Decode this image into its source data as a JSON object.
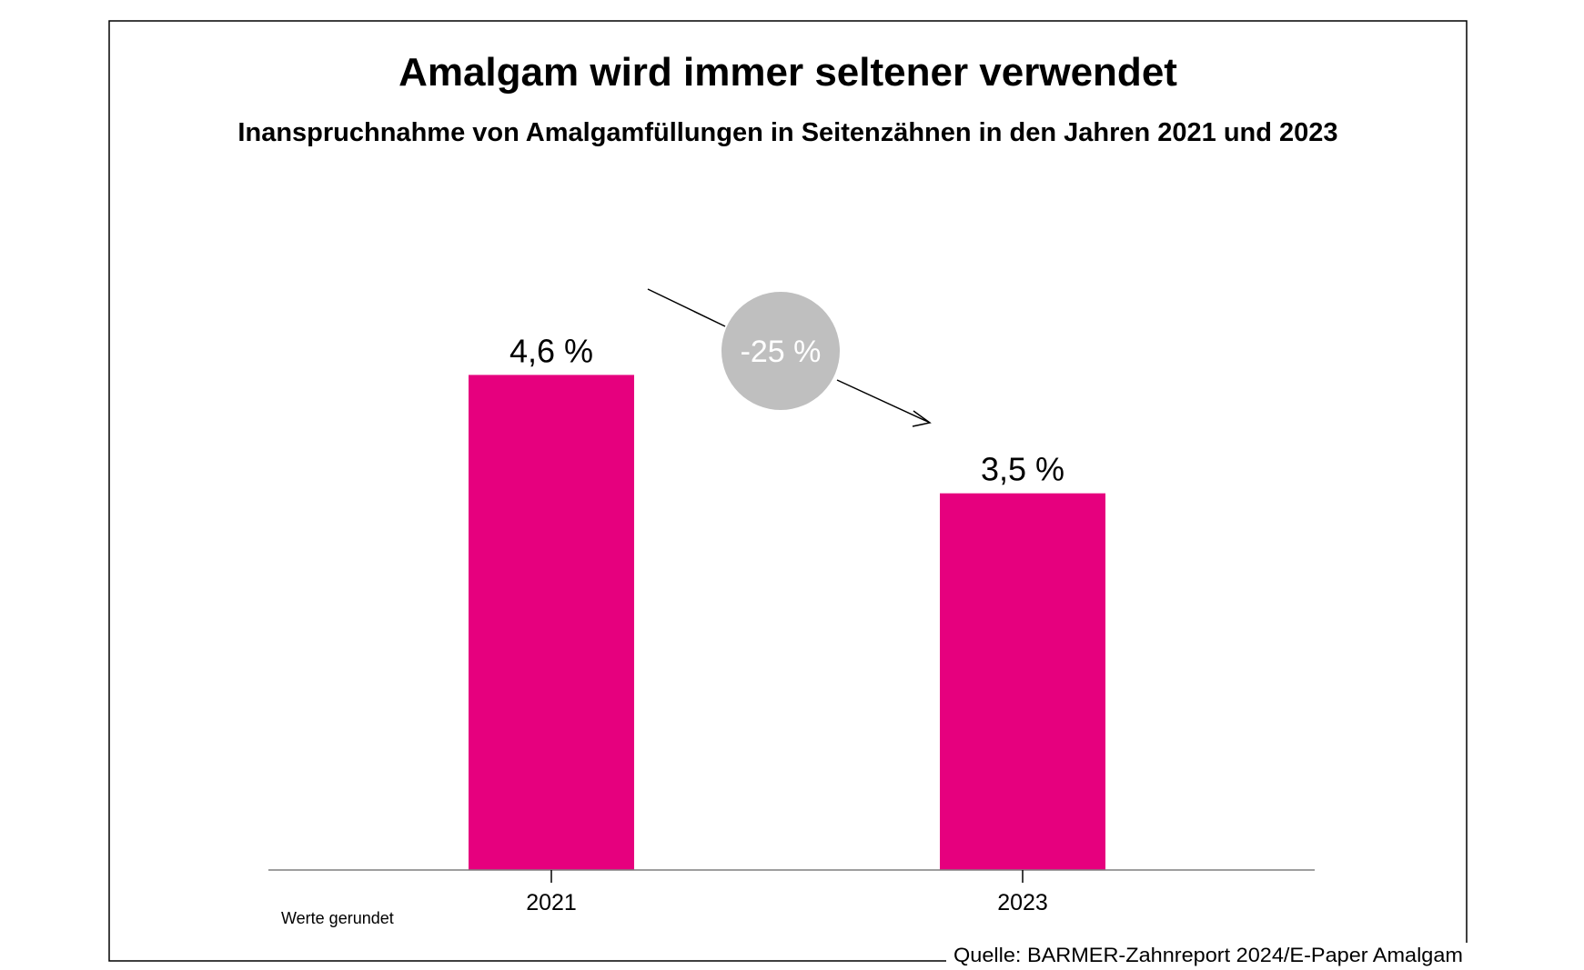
{
  "chart_data": {
    "type": "bar",
    "title": "Amalgam wird immer seltener verwendet",
    "subtitle": "Inanspruchnahme von Amalgamfüllungen in Seitenzähnen in den Jahren 2021 und 2023",
    "categories": [
      "2021",
      "2023"
    ],
    "values": [
      4.6,
      3.5
    ],
    "value_labels": [
      "4,6 %",
      "3,5 %"
    ],
    "change_label": "-25 %",
    "note": "Werte gerundet",
    "source": "Quelle: BARMER-Zahnreport 2024/E-Paper Amalgam",
    "ylim": [
      0,
      6.2
    ],
    "grid": false,
    "bar_color": "#e6007e",
    "badge_color": "#bfbfbf"
  }
}
